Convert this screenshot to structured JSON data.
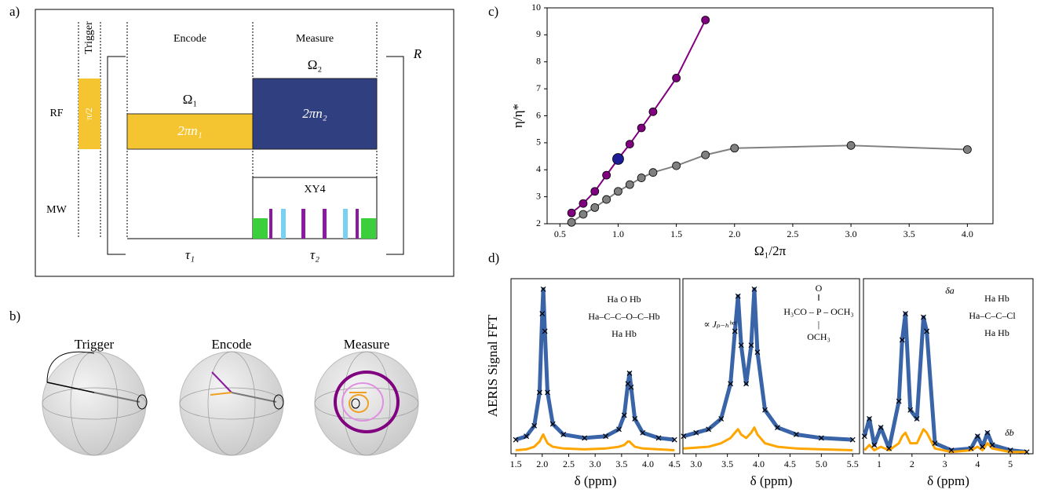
{
  "panel_labels": [
    "a)",
    "b)",
    "c)",
    "d)"
  ],
  "pulse_sequence": {
    "trigger": "Trigger",
    "encode": "Encode",
    "measure": "Measure",
    "rf": "RF",
    "mw": "MW",
    "pi_half": "π/2",
    "omega1": "Ω₁",
    "phase1": "2πn₁",
    "omega2": "Ω₂",
    "phase2": "2πn₂",
    "xy4": "XY4",
    "tau1": "τ₁",
    "tau2": "τ₂",
    "repeat": "R"
  },
  "bloch_spheres": {
    "titles": [
      "Trigger",
      "Encode",
      "Measure"
    ]
  },
  "chart_data": [
    {
      "type": "line",
      "xlabel": "Ω₁/2π",
      "ylabel": "η/η*",
      "xlim": [
        0.39,
        4.22
      ],
      "ylim": [
        2,
        10
      ],
      "xticks": [
        0.5,
        {
          "value": 1,
          "label": "1.0"
        },
        1.5,
        {
          "value": 2,
          "label": "2.0"
        },
        2.5,
        {
          "value": 3,
          "label": "3.0"
        },
        3.5,
        {
          "value": 4,
          "label": "4.0"
        }
      ],
      "yticks": [
        2,
        3,
        4,
        5,
        6,
        7,
        8,
        9,
        10
      ],
      "series": [
        {
          "color": "#800080",
          "marker": "o",
          "x": [
            0.6,
            0.7,
            0.8,
            0.9,
            1.0,
            1.1,
            1.2,
            1.3,
            1.5,
            1.75
          ],
          "values": [
            2.4,
            2.75,
            3.2,
            3.8,
            4.4,
            4.95,
            5.55,
            6.15,
            7.4,
            9.55
          ]
        },
        {
          "color": "#808080",
          "marker": "o",
          "x": [
            0.6,
            0.7,
            0.8,
            0.9,
            1.0,
            1.1,
            1.2,
            1.3,
            1.5,
            1.75,
            2.0,
            3.0,
            4.0
          ],
          "values": [
            2.05,
            2.35,
            2.6,
            2.9,
            3.2,
            3.45,
            3.7,
            3.9,
            4.15,
            4.55,
            4.8,
            4.9,
            4.75
          ]
        },
        {
          "color": "#1c1c96",
          "marker": "o",
          "x": [
            1.0
          ],
          "values": [
            4.4
          ]
        }
      ]
    },
    {
      "type": "spectrum",
      "xlabel": "δ (ppm)",
      "ylabel": "AERIS Signal FFT",
      "xlim": [
        1.41,
        4.6
      ],
      "ylim": [
        0,
        1
      ],
      "xticks": [
        1.5,
        {
          "value": 2,
          "label": "2.0"
        },
        2.5,
        {
          "value": 3,
          "label": "3.0"
        },
        3.5,
        {
          "value": 4,
          "label": "4.0"
        },
        4.5
      ],
      "x": [
        1.5,
        1.7,
        1.85,
        1.95,
        2.0,
        2.02,
        2.05,
        2.1,
        2.2,
        2.4,
        2.8,
        3.2,
        3.45,
        3.55,
        3.62,
        3.65,
        3.68,
        3.75,
        3.9,
        4.2,
        4.5
      ],
      "series": [
        {
          "color": "#3a64a8",
          "values": [
            0.08,
            0.1,
            0.16,
            0.35,
            0.8,
            0.94,
            0.7,
            0.35,
            0.17,
            0.11,
            0.09,
            0.1,
            0.14,
            0.22,
            0.4,
            0.46,
            0.38,
            0.2,
            0.12,
            0.09,
            0.08
          ]
        },
        {
          "color": "#ffa500",
          "values": [
            0.02,
            0.025,
            0.04,
            0.07,
            0.1,
            0.11,
            0.09,
            0.06,
            0.04,
            0.03,
            0.025,
            0.03,
            0.04,
            0.05,
            0.07,
            0.07,
            0.06,
            0.04,
            0.03,
            0.025,
            0.02
          ]
        },
        {
          "color": "#000000",
          "marker": "x",
          "values": [
            0.08,
            0.1,
            0.16,
            0.35,
            0.8,
            0.94,
            0.7,
            0.35,
            0.17,
            0.11,
            0.09,
            0.1,
            0.14,
            0.22,
            0.4,
            0.46,
            0.38,
            0.2,
            0.12,
            0.09,
            0.08
          ]
        }
      ],
      "annotations": [
        "Ha    O          Hb",
        "Ha–C–C–O–C–Hb",
        "Ha                  Hb"
      ]
    },
    {
      "type": "spectrum",
      "xlabel": "δ (ppm)",
      "xlim": [
        2.79,
        5.61
      ],
      "ylim": [
        0,
        1
      ],
      "xticks": [
        {
          "value": 3,
          "label": "3.0"
        },
        3.5,
        {
          "value": 4,
          "label": "4.0"
        },
        4.5,
        {
          "value": 5,
          "label": "5.0"
        },
        5.5
      ],
      "x": [
        2.8,
        3.0,
        3.2,
        3.4,
        3.55,
        3.62,
        3.67,
        3.72,
        3.8,
        3.88,
        3.93,
        3.98,
        4.1,
        4.3,
        4.6,
        5.0,
        5.5
      ],
      "series": [
        {
          "color": "#3a64a8",
          "values": [
            0.1,
            0.12,
            0.14,
            0.2,
            0.4,
            0.7,
            0.9,
            0.62,
            0.4,
            0.62,
            0.94,
            0.58,
            0.25,
            0.15,
            0.11,
            0.09,
            0.08
          ]
        },
        {
          "color": "#ffa500",
          "values": [
            0.03,
            0.035,
            0.04,
            0.06,
            0.09,
            0.12,
            0.14,
            0.11,
            0.09,
            0.12,
            0.15,
            0.11,
            0.06,
            0.04,
            0.03,
            0.025,
            0.02
          ]
        },
        {
          "color": "#000000",
          "marker": "x",
          "values": [
            0.1,
            0.12,
            0.14,
            0.2,
            0.4,
            0.7,
            0.9,
            0.62,
            0.4,
            0.62,
            0.94,
            0.58,
            0.25,
            0.15,
            0.11,
            0.09,
            0.08
          ]
        }
      ],
      "annotations": [
        "O",
        "‖",
        "H₃CO – P – OCH₃",
        "|",
        "OCH₃",
        "∝ Jₚ₋ₕʰᵉᵗ"
      ]
    },
    {
      "type": "spectrum",
      "xlabel": "δ (ppm)",
      "xlim": [
        0.52,
        5.69
      ],
      "ylim": [
        0,
        1
      ],
      "xticks": [
        1,
        2,
        3,
        4,
        5
      ],
      "x": [
        0.55,
        0.7,
        0.85,
        1.05,
        1.3,
        1.6,
        1.7,
        1.8,
        1.95,
        2.15,
        2.35,
        2.45,
        2.7,
        3.2,
        3.8,
        4.0,
        4.15,
        4.3,
        4.45,
        5.0,
        5.5
      ],
      "series": [
        {
          "color": "#3a64a8",
          "values": [
            0.1,
            0.2,
            0.05,
            0.15,
            0.03,
            0.3,
            0.65,
            0.8,
            0.25,
            0.2,
            0.78,
            0.7,
            0.06,
            0.02,
            0.03,
            0.1,
            0.04,
            0.12,
            0.05,
            0.02,
            0.01
          ]
        },
        {
          "color": "#ffa500",
          "values": [
            0.02,
            0.05,
            0.02,
            0.04,
            0.02,
            0.06,
            0.1,
            0.12,
            0.06,
            0.06,
            0.14,
            0.12,
            0.03,
            0.01,
            0.02,
            0.04,
            0.02,
            0.06,
            0.03,
            0.01,
            0.01
          ]
        },
        {
          "color": "#000000",
          "marker": "x",
          "values": [
            0.1,
            0.2,
            0.05,
            0.15,
            0.03,
            0.3,
            0.65,
            0.8,
            0.25,
            0.2,
            0.78,
            0.7,
            0.06,
            0.02,
            0.03,
            0.1,
            0.04,
            0.12,
            0.05,
            0.02,
            0.01
          ]
        }
      ],
      "annotations": [
        "Ha    Hb",
        "Ha–C–C–Cl",
        "Ha    Hb",
        "δa",
        "δb"
      ]
    }
  ]
}
